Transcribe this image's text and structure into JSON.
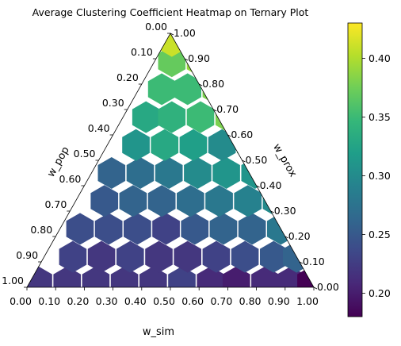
{
  "chart_data": {
    "type": "heatmap",
    "subtype": "ternary-hexbin",
    "title": "Average Clustering Coefficient Heatmap on Ternary Plot",
    "axes": {
      "bottom": {
        "label": "w_sim",
        "ticks": [
          "0.00",
          "0.10",
          "0.20",
          "0.30",
          "0.40",
          "0.50",
          "0.60",
          "0.70",
          "0.80",
          "0.90",
          "1.00"
        ]
      },
      "left": {
        "label": "w_pop",
        "ticks": [
          "1.00",
          "0.90",
          "0.80",
          "0.70",
          "0.60",
          "0.50",
          "0.40",
          "0.30",
          "0.20",
          "0.10",
          "0.00"
        ]
      },
      "right": {
        "label": "w_prox",
        "ticks": [
          "0.00",
          "0.10",
          "0.20",
          "0.30",
          "0.40",
          "0.50",
          "0.60",
          "0.70",
          "0.80",
          "0.90",
          "1.00"
        ]
      }
    },
    "colorbar": {
      "colormap": "viridis",
      "range": [
        0.18,
        0.43
      ],
      "ticks": [
        "0.20",
        "0.25",
        "0.30",
        "0.35",
        "0.40"
      ],
      "tick_values": [
        0.2,
        0.25,
        0.3,
        0.35,
        0.4
      ]
    },
    "hex_rows": [
      {
        "w_pop_level": 0.02,
        "cells": [
          {
            "w_sim": 0.03,
            "value": 0.22
          },
          {
            "w_sim": 0.13,
            "value": 0.22
          },
          {
            "w_sim": 0.23,
            "value": 0.22
          },
          {
            "w_sim": 0.33,
            "value": 0.22
          },
          {
            "w_sim": 0.43,
            "value": 0.22
          },
          {
            "w_sim": 0.53,
            "value": 0.23
          },
          {
            "w_sim": 0.63,
            "value": 0.21
          },
          {
            "w_sim": 0.72,
            "value": 0.2
          },
          {
            "w_sim": 0.82,
            "value": 0.21
          },
          {
            "w_sim": 0.91,
            "value": 0.21
          },
          {
            "w_sim": 0.98,
            "value": 0.18
          }
        ]
      },
      {
        "w_pop_level": 0.12,
        "cells": [
          {
            "w_sim": 0.1,
            "value": 0.23
          },
          {
            "w_sim": 0.2,
            "value": 0.22
          },
          {
            "w_sim": 0.3,
            "value": 0.23
          },
          {
            "w_sim": 0.4,
            "value": 0.22
          },
          {
            "w_sim": 0.5,
            "value": 0.22
          },
          {
            "w_sim": 0.6,
            "value": 0.23
          },
          {
            "w_sim": 0.7,
            "value": 0.24
          },
          {
            "w_sim": 0.8,
            "value": 0.25
          },
          {
            "w_sim": 0.88,
            "value": 0.26
          }
        ]
      },
      {
        "w_pop_level": 0.23,
        "cells": [
          {
            "w_sim": 0.07,
            "value": 0.24
          },
          {
            "w_sim": 0.17,
            "value": 0.24
          },
          {
            "w_sim": 0.27,
            "value": 0.24
          },
          {
            "w_sim": 0.37,
            "value": 0.23
          },
          {
            "w_sim": 0.47,
            "value": 0.25
          },
          {
            "w_sim": 0.57,
            "value": 0.26
          },
          {
            "w_sim": 0.67,
            "value": 0.26
          },
          {
            "w_sim": 0.77,
            "value": 0.28
          },
          {
            "w_sim": 0.85,
            "value": 0.3
          }
        ]
      },
      {
        "w_pop_level": 0.34,
        "cells": [
          {
            "w_sim": 0.1,
            "value": 0.25
          },
          {
            "w_sim": 0.2,
            "value": 0.26
          },
          {
            "w_sim": 0.3,
            "value": 0.26
          },
          {
            "w_sim": 0.4,
            "value": 0.27
          },
          {
            "w_sim": 0.5,
            "value": 0.28
          },
          {
            "w_sim": 0.6,
            "value": 0.29
          },
          {
            "w_sim": 0.7,
            "value": 0.3
          },
          {
            "w_sim": 0.79,
            "value": 0.33
          }
        ]
      },
      {
        "w_pop_level": 0.45,
        "cells": [
          {
            "w_sim": 0.07,
            "value": 0.26
          },
          {
            "w_sim": 0.17,
            "value": 0.27
          },
          {
            "w_sim": 0.27,
            "value": 0.28
          },
          {
            "w_sim": 0.37,
            "value": 0.3
          },
          {
            "w_sim": 0.47,
            "value": 0.31
          },
          {
            "w_sim": 0.57,
            "value": 0.31
          },
          {
            "w_sim": 0.67,
            "value": 0.33
          },
          {
            "w_sim": 0.74,
            "value": 0.35
          }
        ]
      },
      {
        "w_pop_level": 0.56,
        "cells": [
          {
            "w_sim": 0.1,
            "value": 0.31
          },
          {
            "w_sim": 0.2,
            "value": 0.33
          },
          {
            "w_sim": 0.3,
            "value": 0.32
          },
          {
            "w_sim": 0.4,
            "value": 0.3
          },
          {
            "w_sim": 0.5,
            "value": 0.36
          },
          {
            "w_sim": 0.6,
            "value": 0.36
          },
          {
            "w_sim": 0.68,
            "value": 0.36
          }
        ]
      },
      {
        "w_pop_level": 0.67,
        "cells": [
          {
            "w_sim": 0.08,
            "value": 0.33
          },
          {
            "w_sim": 0.17,
            "value": 0.34
          },
          {
            "w_sim": 0.27,
            "value": 0.35
          },
          {
            "w_sim": 0.37,
            "value": 0.38
          },
          {
            "w_sim": 0.47,
            "value": 0.38
          },
          {
            "w_sim": 0.56,
            "value": 0.42
          }
        ]
      },
      {
        "w_pop_level": 0.78,
        "cells": [
          {
            "w_sim": 0.08,
            "value": 0.35
          },
          {
            "w_sim": 0.17,
            "value": 0.35
          },
          {
            "w_sim": 0.27,
            "value": 0.38
          },
          {
            "w_sim": 0.37,
            "value": 0.38
          },
          {
            "w_sim": 0.44,
            "value": 0.4
          }
        ]
      },
      {
        "w_pop_level": 0.89,
        "cells": [
          {
            "w_sim": 0.06,
            "value": 0.37
          },
          {
            "w_sim": 0.16,
            "value": 0.39
          },
          {
            "w_sim": 0.26,
            "value": 0.43
          }
        ]
      },
      {
        "w_pop_level": 0.97,
        "cells": [
          {
            "w_sim": 0.02,
            "value": 0.41
          }
        ]
      }
    ]
  }
}
